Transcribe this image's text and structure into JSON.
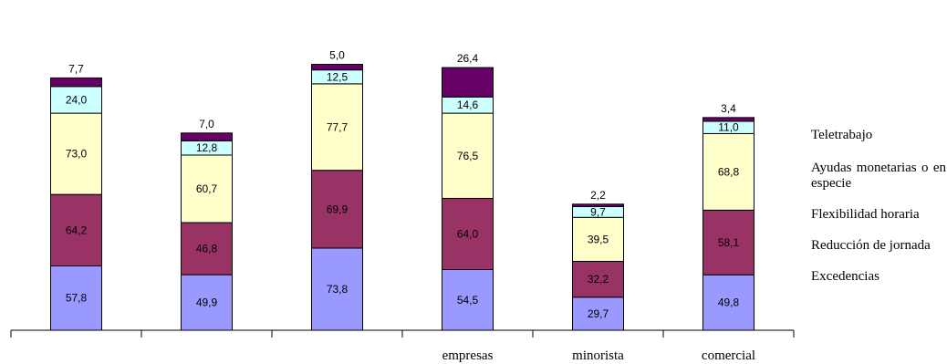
{
  "chart_data": {
    "type": "bar",
    "stacked": true,
    "categories": [
      "",
      "",
      "",
      "empresas",
      "minorista",
      "comercial"
    ],
    "series": [
      {
        "name": "Excedencias",
        "color": "#9999ff",
        "values": [
          57.8,
          49.9,
          73.8,
          54.5,
          29.7,
          49.8
        ],
        "labels": [
          "57,8",
          "49,9",
          "73,8",
          "54,5",
          "29,7",
          "49,8"
        ]
      },
      {
        "name": "Reducción de jornada",
        "color": "#993366",
        "values": [
          64.2,
          46.8,
          69.9,
          64.0,
          32.2,
          58.1
        ],
        "labels": [
          "64,2",
          "46,8",
          "69,9",
          "64,0",
          "32,2",
          "58,1"
        ]
      },
      {
        "name": "Flexibilidad horaria",
        "color": "#ffffcc",
        "values": [
          73.0,
          60.7,
          77.7,
          76.5,
          39.5,
          68.8
        ],
        "labels": [
          "73,0",
          "60,7",
          "77,7",
          "76,5",
          "39,5",
          "68,8"
        ]
      },
      {
        "name": "Ayudas monetarias o en especie",
        "color": "#ccffff",
        "values": [
          24.0,
          12.8,
          12.5,
          14.6,
          9.7,
          11.0
        ],
        "labels": [
          "24,0",
          "12,8",
          "12,5",
          "14,6",
          "9,7",
          "11,0"
        ]
      },
      {
        "name": "Teletrabajo",
        "color": "#660066",
        "values": [
          7.7,
          7.0,
          5.0,
          26.4,
          2.2,
          3.4
        ],
        "labels": [
          "7,7",
          "7,0",
          "5,0",
          "26,4",
          "2,2",
          "3,4"
        ]
      }
    ],
    "legend_position": "right",
    "grid": false
  },
  "legend": {
    "teletrabajo": "Teletrabajo",
    "ayudas": "Ayudas monetarias o en especie",
    "flexibilidad": "Flexibilidad horaria",
    "reduccion": "Reducción de jornada",
    "excedencias": "Excedencias"
  }
}
